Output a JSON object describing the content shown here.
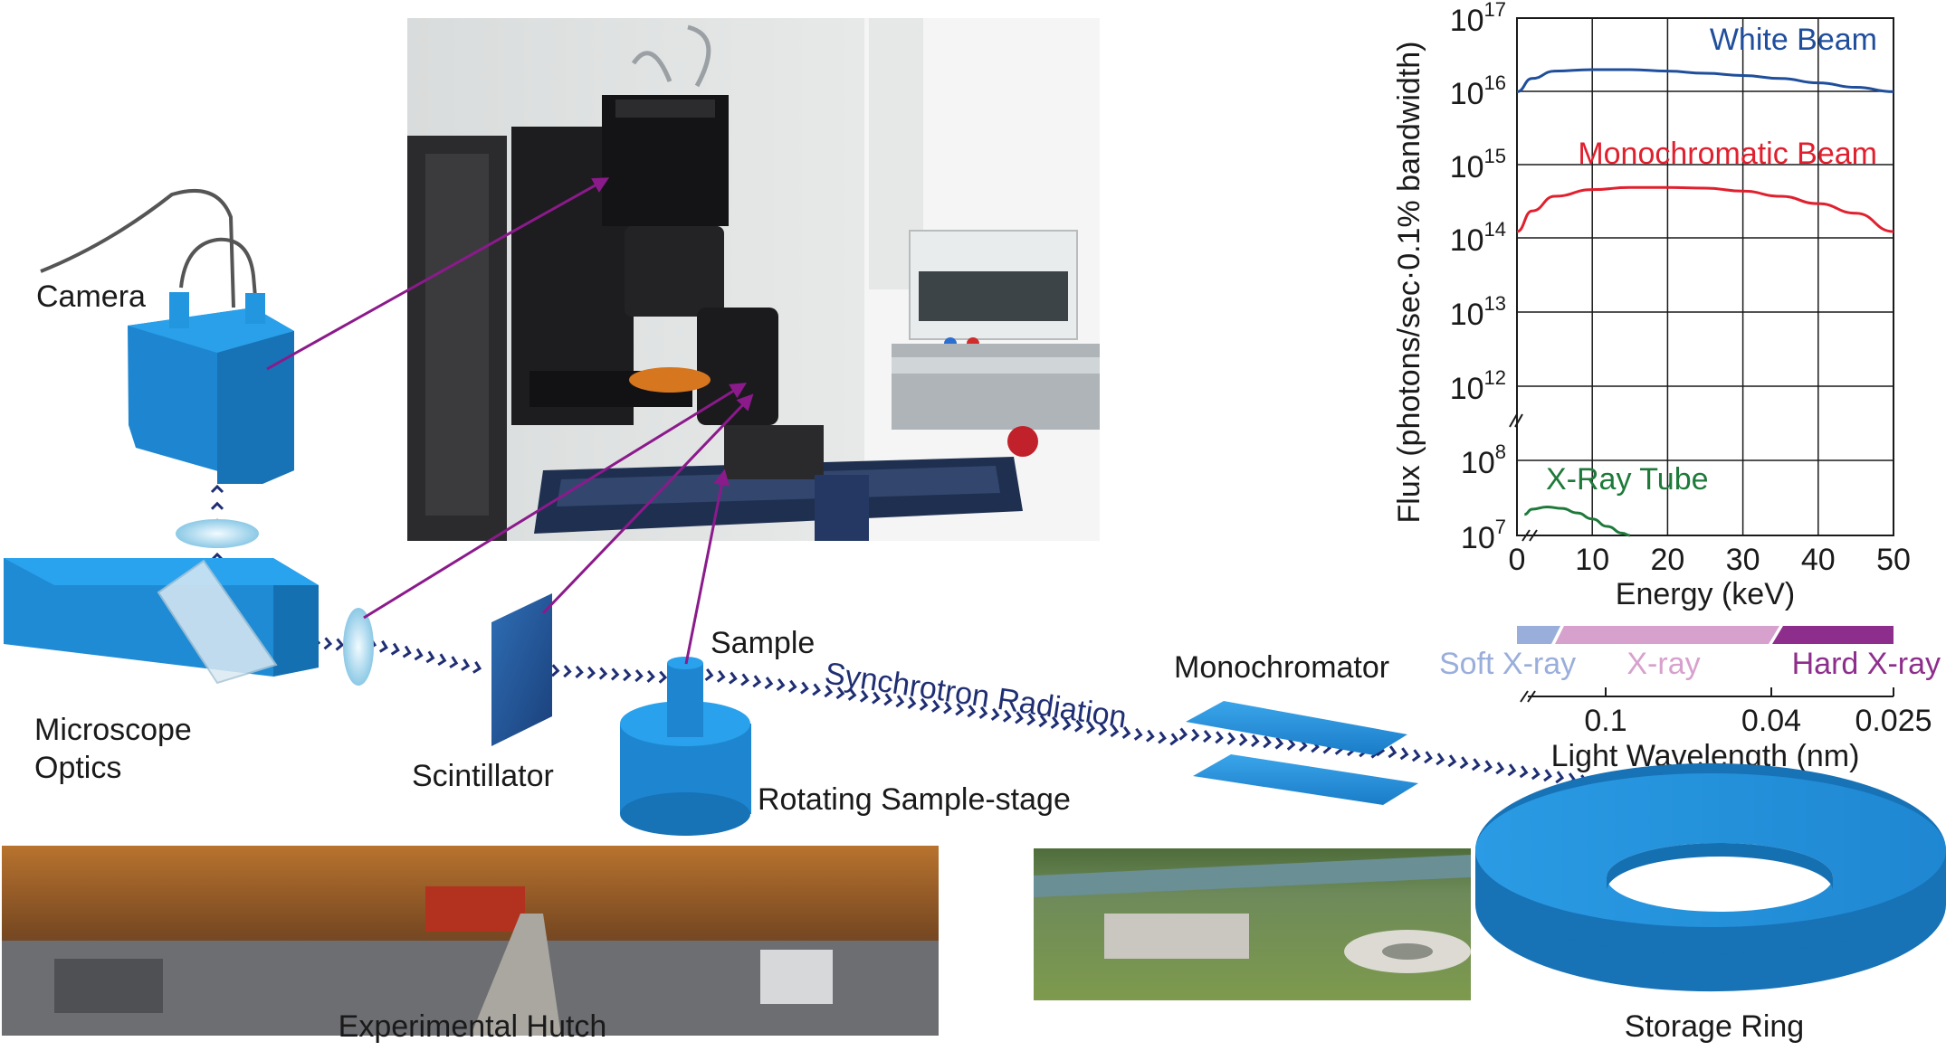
{
  "labels": {
    "camera": "Camera",
    "microscope_optics_line1": "Microscope",
    "microscope_optics_line2": "Optics",
    "scintillator": "Scintillator",
    "sample": "Sample",
    "rotating_stage": "Rotating Sample-stage",
    "synchrotron_radiation": "Synchrotron Radiation",
    "monochromator": "Monochromator",
    "experimental_hutch": "Experimental Hutch",
    "storage_ring": "Storage Ring"
  },
  "chart": {
    "ylabel": "Flux (photons/sec·0.1% bandwidth)",
    "xlabel": "Energy (keV)",
    "wavelength_label": "Light Wavelength (nm)",
    "yticks": [
      {
        "base": "10",
        "exp": "17"
      },
      {
        "base": "10",
        "exp": "16"
      },
      {
        "base": "10",
        "exp": "15"
      },
      {
        "base": "10",
        "exp": "14"
      },
      {
        "base": "10",
        "exp": "13"
      },
      {
        "base": "10",
        "exp": "12"
      },
      {
        "base": "10",
        "exp": "8"
      },
      {
        "base": "10",
        "exp": "7"
      }
    ],
    "xticks": [
      "0",
      "10",
      "20",
      "30",
      "40",
      "50"
    ],
    "wavelength_ticks": [
      "0.1",
      "0.04",
      "0.025"
    ],
    "bands": [
      {
        "label": "Soft X-ray",
        "color": "#9aaedc"
      },
      {
        "label": "X-ray",
        "color": "#d7a1cd"
      },
      {
        "label": "Hard X-ray",
        "color": "#8e2e8c"
      }
    ],
    "series_labels": {
      "white": "White Beam",
      "mono": "Monochromatic Beam",
      "tube": "X-Ray Tube"
    },
    "colors": {
      "white": "#1f4e9c",
      "mono": "#e0202e",
      "tube": "#1e7a3a"
    }
  },
  "chart_data": {
    "type": "line",
    "xlabel": "Energy (keV)",
    "ylabel": "Flux (photons/sec·0.1% bandwidth)",
    "xlim": [
      0,
      50
    ],
    "y_scale": "log (broken axis between 10^12 and 10^8)",
    "yticks_exponents": [
      7,
      8,
      12,
      13,
      14,
      15,
      16,
      17
    ],
    "grid": true,
    "series": [
      {
        "name": "White Beam",
        "color": "#1f4e9c",
        "x": [
          0,
          2,
          5,
          10,
          15,
          20,
          25,
          30,
          35,
          40,
          45,
          50
        ],
        "y_log10": [
          16.0,
          16.18,
          16.28,
          16.3,
          16.3,
          16.28,
          16.25,
          16.22,
          16.18,
          16.12,
          16.06,
          16.0
        ]
      },
      {
        "name": "Monochromatic Beam",
        "color": "#e0202e",
        "x": [
          0,
          2,
          5,
          10,
          15,
          20,
          25,
          30,
          35,
          40,
          45,
          50
        ],
        "y_log10": [
          14.1,
          14.38,
          14.58,
          14.67,
          14.7,
          14.7,
          14.69,
          14.65,
          14.58,
          14.48,
          14.35,
          14.1
        ]
      },
      {
        "name": "X-Ray Tube",
        "color": "#1e7a3a",
        "x": [
          1,
          2,
          4,
          6,
          8,
          10,
          12,
          14,
          15
        ],
        "y_log10": [
          7.28,
          7.35,
          7.38,
          7.36,
          7.3,
          7.22,
          7.12,
          7.03,
          7.0
        ]
      }
    ]
  }
}
